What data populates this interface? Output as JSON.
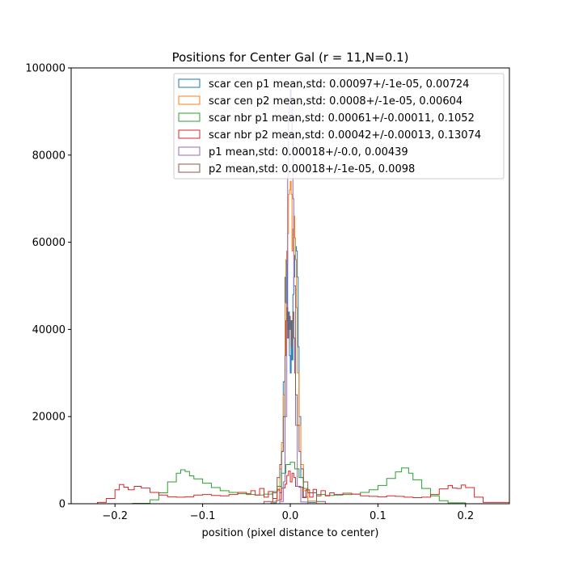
{
  "chart_data": {
    "type": "histogram",
    "title": "Positions for Center Gal (r = 11,N=0.1)",
    "xlabel": "position (pixel distance to center)",
    "ylabel": "",
    "xlim": [
      -0.25,
      0.25
    ],
    "ylim": [
      0,
      100000
    ],
    "xticks": [
      -0.2,
      -0.1,
      0.0,
      0.1,
      0.2
    ],
    "xtick_labels": [
      "−0.2",
      "−0.1",
      "0.0",
      "0.1",
      "0.2"
    ],
    "yticks": [
      0,
      20000,
      40000,
      60000,
      80000,
      100000
    ],
    "ytick_labels": [
      "0",
      "20000",
      "40000",
      "60000",
      "80000",
      "100000"
    ],
    "grid": false,
    "legend_position": "upper right",
    "series": [
      {
        "name": "scar cen p1 mean,std: 0.00097+/-1e-05, 0.00724",
        "color": "#1f77b4",
        "histtype": "step",
        "points": [
          [
            -0.03,
            0
          ],
          [
            -0.022,
            200
          ],
          [
            -0.016,
            800
          ],
          [
            -0.012,
            2500
          ],
          [
            -0.01,
            12000
          ],
          [
            -0.008,
            28000
          ],
          [
            -0.006,
            52000
          ],
          [
            -0.005,
            46000
          ],
          [
            -0.004,
            58000
          ],
          [
            -0.003,
            40000
          ],
          [
            -0.002,
            44000
          ],
          [
            -0.001,
            34000
          ],
          [
            0.0,
            30000
          ],
          [
            0.001,
            42000
          ],
          [
            0.002,
            33000
          ],
          [
            0.003,
            48000
          ],
          [
            0.004,
            52000
          ],
          [
            0.005,
            57000
          ],
          [
            0.006,
            59000
          ],
          [
            0.007,
            58000
          ],
          [
            0.008,
            52000
          ],
          [
            0.009,
            36000
          ],
          [
            0.01,
            20000
          ],
          [
            0.012,
            6000
          ],
          [
            0.015,
            1500
          ],
          [
            0.02,
            300
          ],
          [
            0.03,
            0
          ]
        ]
      },
      {
        "name": "scar cen p2 mean,std: 0.0008+/-1e-05, 0.00604",
        "color": "#ff7f0e",
        "histtype": "step",
        "points": [
          [
            -0.03,
            0
          ],
          [
            -0.02,
            500
          ],
          [
            -0.015,
            3000
          ],
          [
            -0.012,
            8000
          ],
          [
            -0.01,
            14000
          ],
          [
            -0.008,
            25000
          ],
          [
            -0.006,
            46000
          ],
          [
            -0.005,
            56000
          ],
          [
            -0.004,
            58000
          ],
          [
            -0.003,
            62000
          ],
          [
            -0.002,
            71000
          ],
          [
            -0.001,
            72000
          ],
          [
            0.0,
            74000
          ],
          [
            0.001,
            71000
          ],
          [
            0.002,
            58000
          ],
          [
            0.003,
            63000
          ],
          [
            0.004,
            66000
          ],
          [
            0.005,
            61000
          ],
          [
            0.006,
            56000
          ],
          [
            0.007,
            45000
          ],
          [
            0.008,
            30000
          ],
          [
            0.01,
            18000
          ],
          [
            0.012,
            9000
          ],
          [
            0.015,
            3000
          ],
          [
            0.02,
            600
          ],
          [
            0.03,
            0
          ]
        ]
      },
      {
        "name": "scar nbr p1 mean,std: 0.00061+/-0.00011, 0.1052",
        "color": "#2ca02c",
        "histtype": "step",
        "points": [
          [
            -0.2,
            0
          ],
          [
            -0.18,
            100
          ],
          [
            -0.16,
            900
          ],
          [
            -0.15,
            2500
          ],
          [
            -0.14,
            5000
          ],
          [
            -0.13,
            7000
          ],
          [
            -0.125,
            7800
          ],
          [
            -0.12,
            7400
          ],
          [
            -0.115,
            6400
          ],
          [
            -0.11,
            5700
          ],
          [
            -0.1,
            4700
          ],
          [
            -0.09,
            3700
          ],
          [
            -0.08,
            3000
          ],
          [
            -0.07,
            2600
          ],
          [
            -0.06,
            2300
          ],
          [
            -0.05,
            2100
          ],
          [
            -0.04,
            2000
          ],
          [
            -0.03,
            2200
          ],
          [
            -0.02,
            2800
          ],
          [
            -0.015,
            4000
          ],
          [
            -0.01,
            7000
          ],
          [
            -0.005,
            9000
          ],
          [
            0.0,
            9500
          ],
          [
            0.005,
            8000
          ],
          [
            0.01,
            6000
          ],
          [
            0.015,
            3500
          ],
          [
            0.02,
            2500
          ],
          [
            0.03,
            2100
          ],
          [
            0.04,
            1900
          ],
          [
            0.05,
            2000
          ],
          [
            0.06,
            2100
          ],
          [
            0.07,
            2200
          ],
          [
            0.08,
            2600
          ],
          [
            0.09,
            3200
          ],
          [
            0.1,
            4200
          ],
          [
            0.11,
            5800
          ],
          [
            0.12,
            7300
          ],
          [
            0.127,
            8200
          ],
          [
            0.135,
            7000
          ],
          [
            0.14,
            5500
          ],
          [
            0.15,
            3500
          ],
          [
            0.16,
            1800
          ],
          [
            0.17,
            700
          ],
          [
            0.18,
            200
          ],
          [
            0.2,
            0
          ]
        ]
      },
      {
        "name": "scar nbr p2 mean,std: 0.00042+/-0.00013, 0.13074",
        "color": "#d62728",
        "histtype": "step",
        "points": [
          [
            -0.25,
            0
          ],
          [
            -0.22,
            300
          ],
          [
            -0.21,
            1200
          ],
          [
            -0.2,
            3200
          ],
          [
            -0.195,
            4400
          ],
          [
            -0.19,
            3800
          ],
          [
            -0.185,
            3200
          ],
          [
            -0.178,
            4000
          ],
          [
            -0.17,
            3600
          ],
          [
            -0.16,
            2600
          ],
          [
            -0.15,
            2000
          ],
          [
            -0.14,
            1600
          ],
          [
            -0.13,
            1500
          ],
          [
            -0.12,
            1600
          ],
          [
            -0.11,
            2000
          ],
          [
            -0.1,
            2100
          ],
          [
            -0.09,
            1900
          ],
          [
            -0.08,
            1800
          ],
          [
            -0.07,
            2100
          ],
          [
            -0.06,
            2600
          ],
          [
            -0.05,
            2300
          ],
          [
            -0.045,
            3000
          ],
          [
            -0.04,
            2000
          ],
          [
            -0.035,
            3500
          ],
          [
            -0.03,
            1500
          ],
          [
            -0.025,
            2800
          ],
          [
            -0.02,
            1200
          ],
          [
            -0.015,
            3300
          ],
          [
            -0.012,
            900
          ],
          [
            -0.01,
            3600
          ],
          [
            -0.006,
            4500
          ],
          [
            -0.004,
            6500
          ],
          [
            -0.002,
            7500
          ],
          [
            0.0,
            5000
          ],
          [
            0.002,
            7000
          ],
          [
            0.004,
            6000
          ],
          [
            0.006,
            4000
          ],
          [
            0.01,
            3800
          ],
          [
            0.014,
            1400
          ],
          [
            0.018,
            3200
          ],
          [
            0.022,
            1500
          ],
          [
            0.026,
            3300
          ],
          [
            0.03,
            1800
          ],
          [
            0.035,
            3000
          ],
          [
            0.04,
            1800
          ],
          [
            0.045,
            2500
          ],
          [
            0.05,
            2100
          ],
          [
            0.06,
            2400
          ],
          [
            0.07,
            2200
          ],
          [
            0.08,
            1800
          ],
          [
            0.09,
            1700
          ],
          [
            0.1,
            1600
          ],
          [
            0.11,
            1800
          ],
          [
            0.12,
            1700
          ],
          [
            0.13,
            1500
          ],
          [
            0.14,
            1400
          ],
          [
            0.15,
            1500
          ],
          [
            0.16,
            2100
          ],
          [
            0.17,
            3400
          ],
          [
            0.18,
            4200
          ],
          [
            0.185,
            3600
          ],
          [
            0.19,
            3500
          ],
          [
            0.195,
            4300
          ],
          [
            0.2,
            3700
          ],
          [
            0.21,
            1500
          ],
          [
            0.22,
            300
          ],
          [
            0.25,
            0
          ]
        ]
      },
      {
        "name": "p1 mean,std: 0.00018+/-0.0, 0.00439",
        "color": "#9467bd",
        "histtype": "step",
        "points": [
          [
            -0.02,
            0
          ],
          [
            -0.012,
            500
          ],
          [
            -0.008,
            5000
          ],
          [
            -0.006,
            20000
          ],
          [
            -0.004,
            55000
          ],
          [
            -0.003,
            75000
          ],
          [
            -0.002,
            88000
          ],
          [
            -0.001,
            93000
          ],
          [
            0.0,
            95000
          ],
          [
            0.001,
            92000
          ],
          [
            0.002,
            84000
          ],
          [
            0.003,
            70000
          ],
          [
            0.004,
            50000
          ],
          [
            0.006,
            18000
          ],
          [
            0.008,
            4000
          ],
          [
            0.012,
            400
          ],
          [
            0.02,
            0
          ]
        ]
      },
      {
        "name": "p2 mean,std: 0.00018+/-1e-05, 0.0098",
        "color": "#8c564b",
        "histtype": "step",
        "points": [
          [
            -0.04,
            0
          ],
          [
            -0.03,
            500
          ],
          [
            -0.02,
            2500
          ],
          [
            -0.015,
            6000
          ],
          [
            -0.012,
            9000
          ],
          [
            -0.01,
            12000
          ],
          [
            -0.008,
            20000
          ],
          [
            -0.006,
            34000
          ],
          [
            -0.005,
            42000
          ],
          [
            -0.004,
            45000
          ],
          [
            -0.003,
            38000
          ],
          [
            -0.002,
            41000
          ],
          [
            -0.001,
            43000
          ],
          [
            0.0,
            40000
          ],
          [
            0.001,
            36000
          ],
          [
            0.002,
            42000
          ],
          [
            0.003,
            44000
          ],
          [
            0.004,
            38000
          ],
          [
            0.005,
            30000
          ],
          [
            0.006,
            25000
          ],
          [
            0.008,
            18000
          ],
          [
            0.01,
            12000
          ],
          [
            0.012,
            8000
          ],
          [
            0.015,
            5000
          ],
          [
            0.02,
            2500
          ],
          [
            0.03,
            500
          ],
          [
            0.04,
            0
          ]
        ]
      }
    ]
  }
}
